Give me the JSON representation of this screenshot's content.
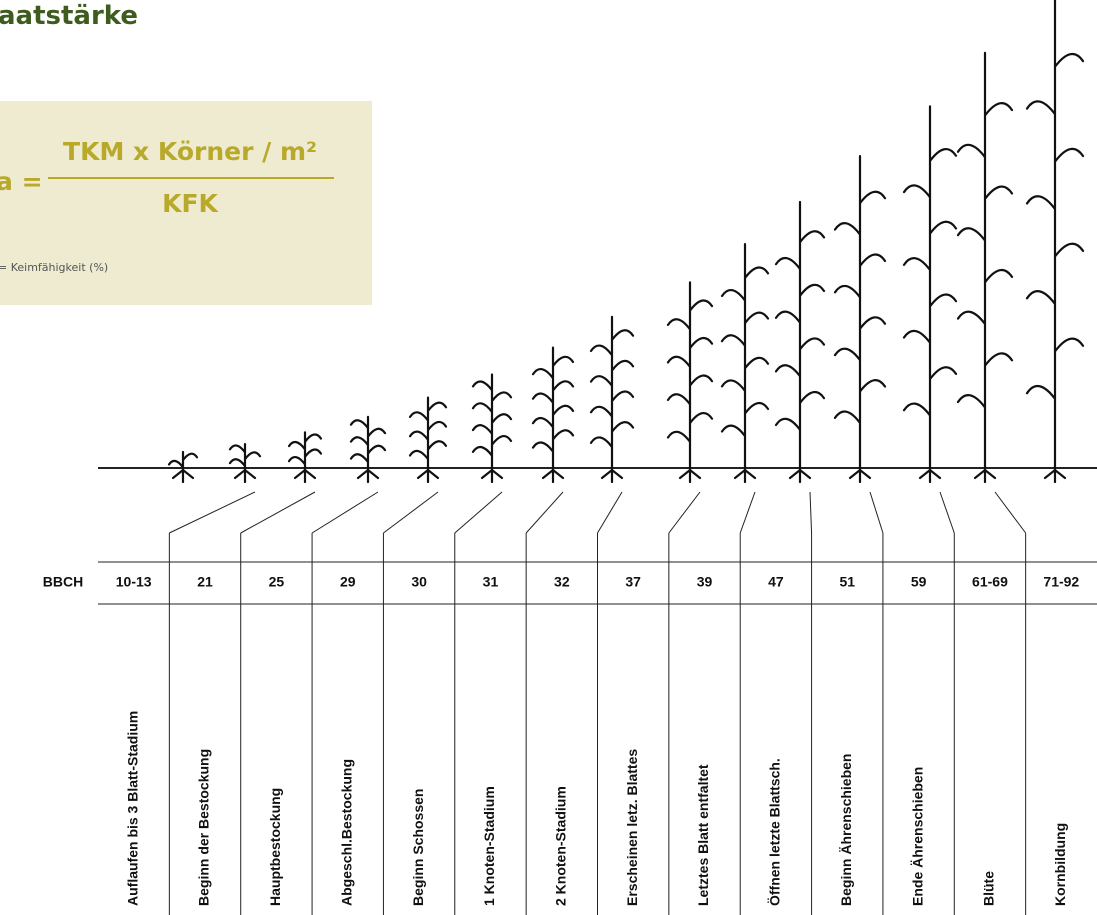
{
  "header": {
    "title": "aatstärke"
  },
  "formula": {
    "lhs": "a =",
    "numerator": "TKM x Körner / m²",
    "denominator": "KFK",
    "note": "= Keimfähigkeit (%)"
  },
  "table": {
    "row_label": "BBCH",
    "codes": [
      "10-13",
      "21",
      "25",
      "29",
      "30",
      "31",
      "32",
      "37",
      "39",
      "47",
      "51",
      "59",
      "61-69",
      "71-92"
    ],
    "stages": [
      "Auflaufen bis 3 Blatt-Stadium",
      "Beginn der Bestockung",
      "Hauptbestockung",
      "Abgeschl.Bestockung",
      "Beginn Schossen",
      "1 Knoten-Stadium",
      "2 Knoten-Stadium",
      "Erscheinen letz. Blattes",
      "Letztes Blatt entfaltet",
      "Öffnen letzte Blattsch.",
      "Beginn Ährenschieben",
      "Ende Ährenschieben",
      "Blüte",
      "Kornbildung"
    ]
  }
}
